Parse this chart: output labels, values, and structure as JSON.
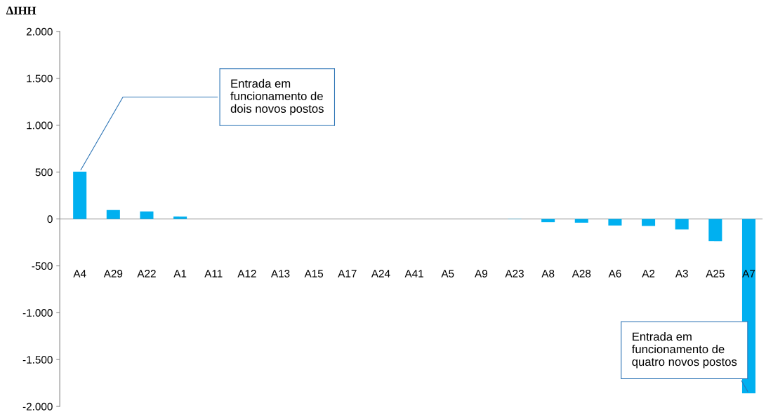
{
  "chart_data": {
    "type": "bar",
    "ylabel": "ΔIHH",
    "categories": [
      "A4",
      "A29",
      "A22",
      "A1",
      "A11",
      "A12",
      "A13",
      "A15",
      "A17",
      "A24",
      "A41",
      "A5",
      "A9",
      "A23",
      "A8",
      "A28",
      "A6",
      "A2",
      "A3",
      "A25",
      "A7"
    ],
    "values": [
      505,
      95,
      80,
      25,
      0,
      0,
      0,
      0,
      0,
      0,
      0,
      0,
      0,
      -3,
      -35,
      -40,
      -70,
      -75,
      -112,
      -237,
      -1860
    ],
    "color": "#00b0f0",
    "ylim": [
      -2000,
      2000
    ],
    "yticks": [
      {
        "value": -2000,
        "label": "-2.000"
      },
      {
        "value": -1500,
        "label": "-1.500"
      },
      {
        "value": -1000,
        "label": "-1.000"
      },
      {
        "value": -500,
        "label": "-500"
      },
      0,
      500,
      {
        "value": 1000,
        "label": "1.000"
      },
      {
        "value": 1500,
        "label": "1.500"
      },
      {
        "value": 2000,
        "label": "2.000"
      }
    ],
    "legend": false,
    "annotations": [
      {
        "text": "Entrada em\nfuncionamento de\ndois novos postos",
        "x": "A4",
        "y": 505
      },
      {
        "text": "Entrada em\nfuncionamento de\nquatro novos postos",
        "x": "A7",
        "y": -1860
      }
    ]
  }
}
